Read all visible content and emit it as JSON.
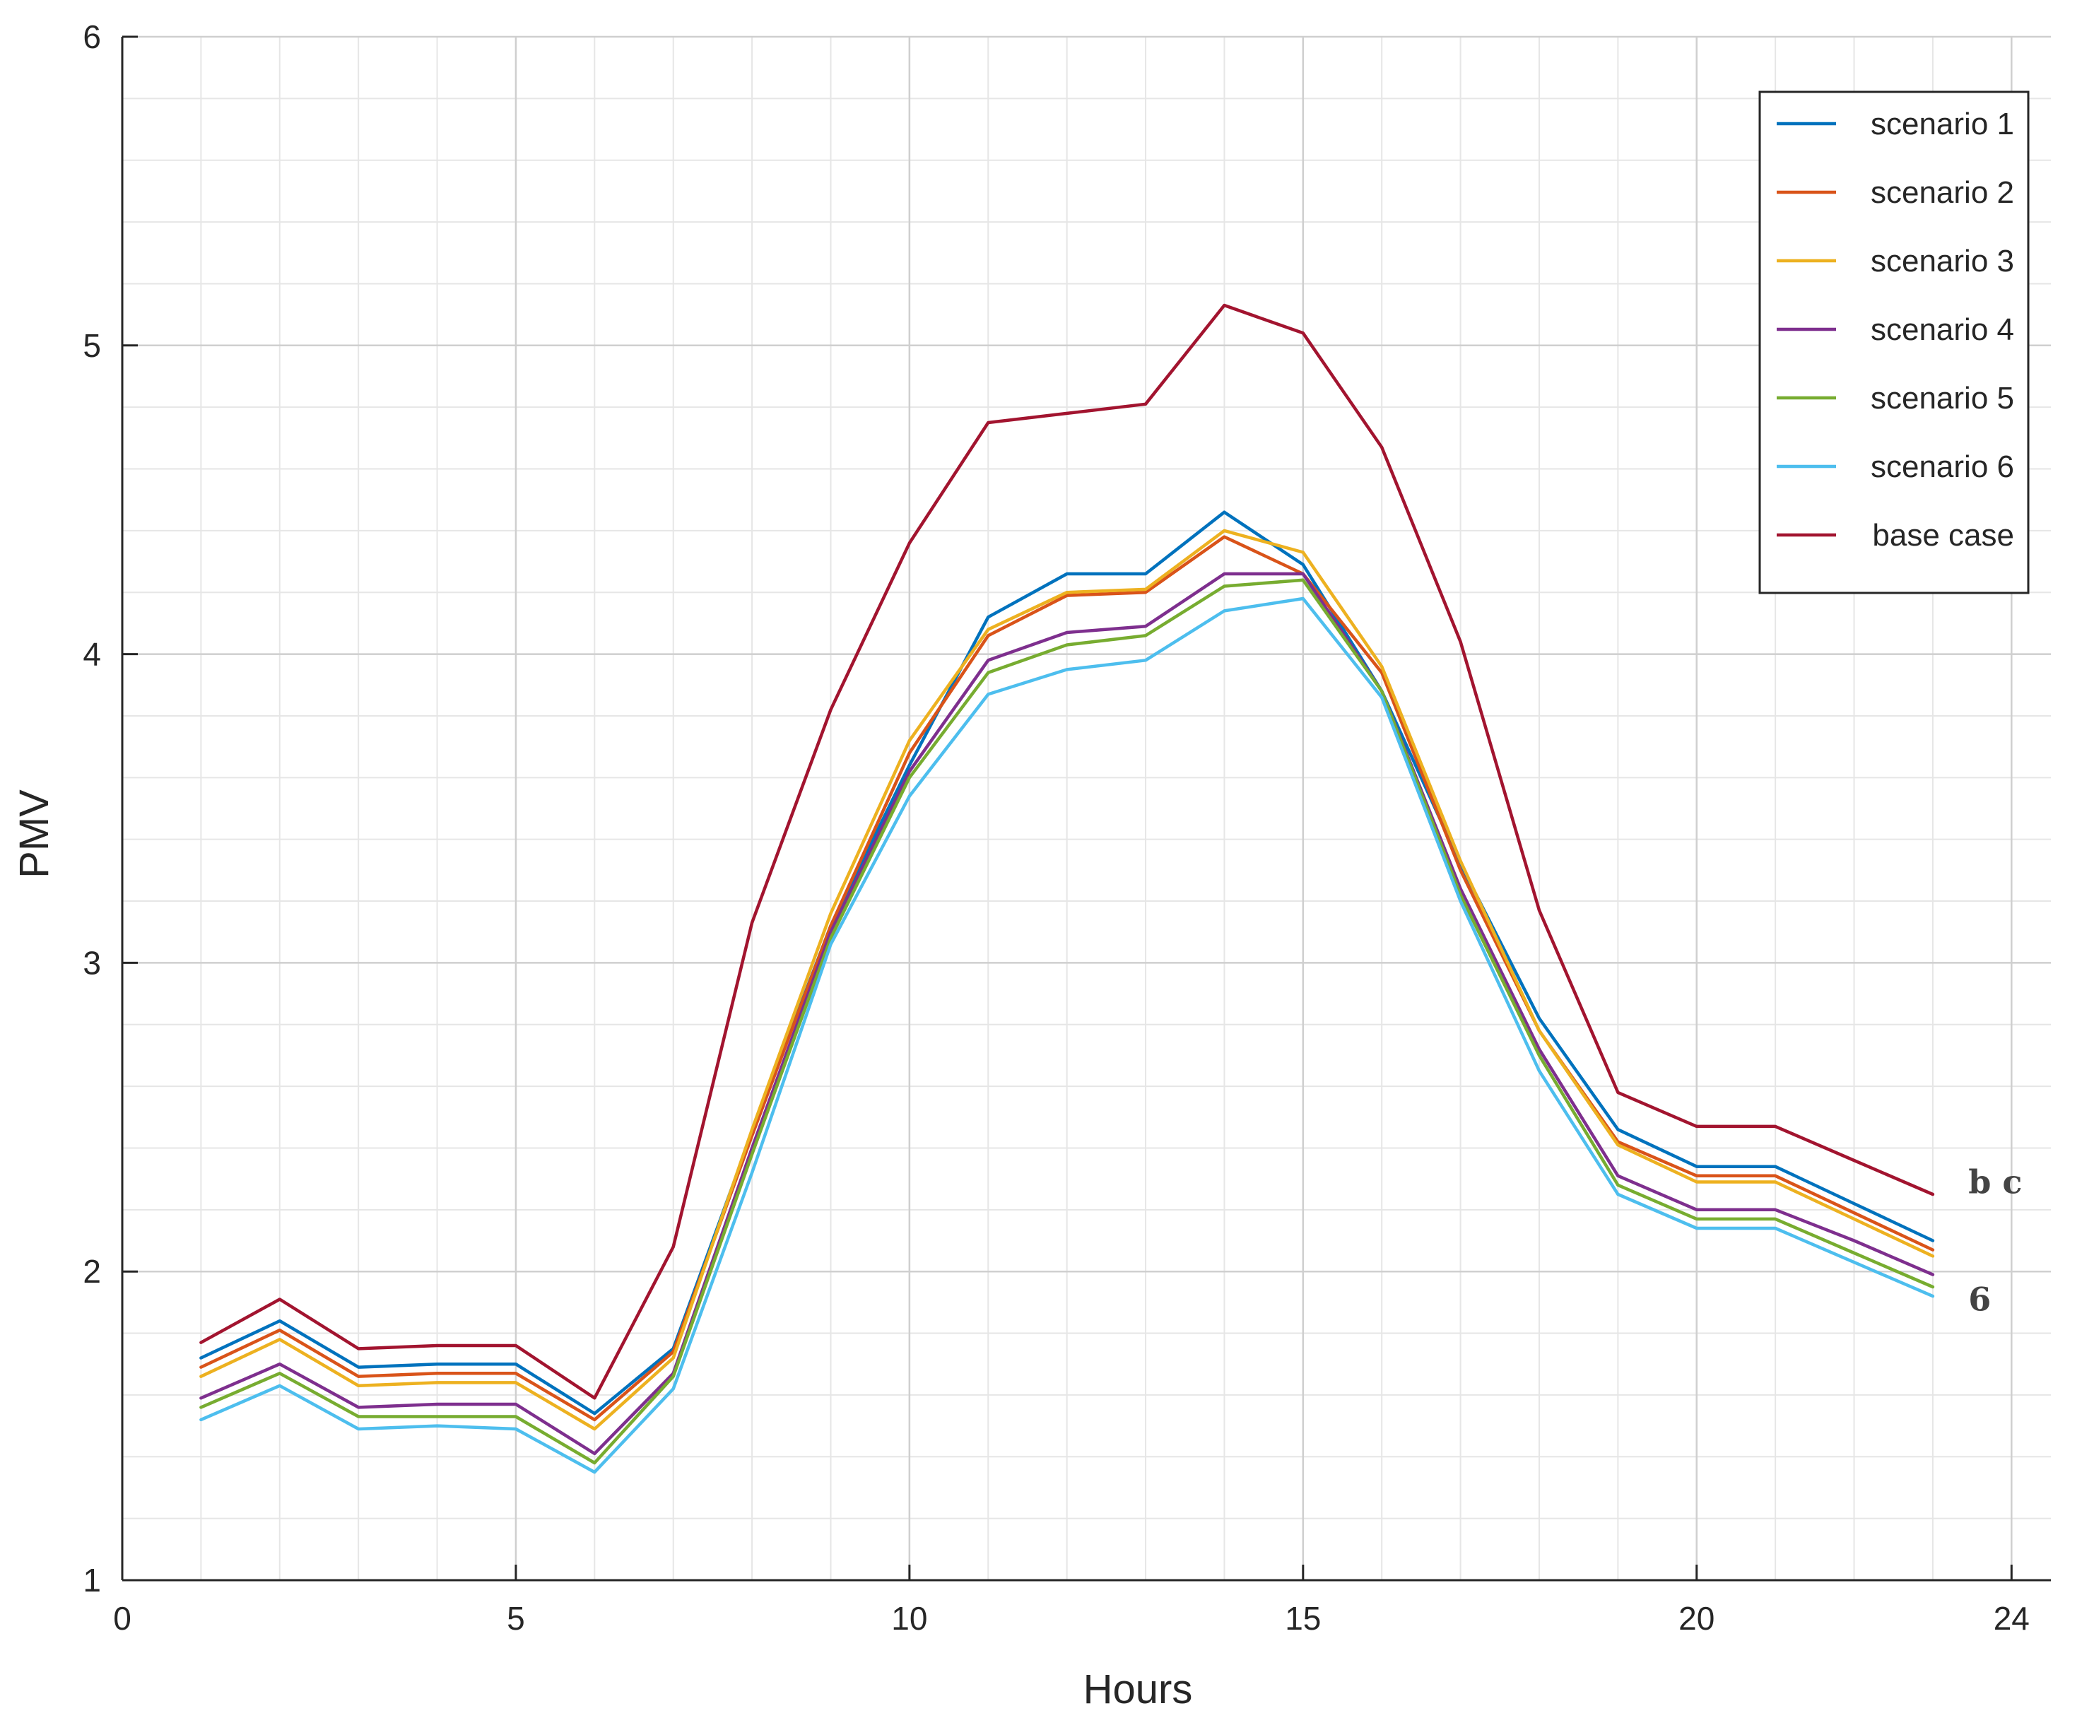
{
  "chart_data": {
    "type": "line",
    "title": "",
    "xlabel": "Hours",
    "ylabel": "PMV",
    "xlim": [
      0,
      24.5
    ],
    "ylim": [
      1,
      6
    ],
    "xticks": [
      0,
      5,
      10,
      15,
      20,
      24
    ],
    "yticks": [
      1,
      2,
      3,
      4,
      5,
      6
    ],
    "grid": true,
    "minor_grid": true,
    "legend_position": "top-right",
    "x": [
      1,
      2,
      3,
      4,
      5,
      6,
      7,
      8,
      9,
      10,
      11,
      12,
      13,
      14,
      15,
      16,
      17,
      18,
      19,
      20,
      21,
      22,
      23
    ],
    "series": [
      {
        "name": "scenario 1",
        "color": "#0072BD",
        "values": [
          1.72,
          1.84,
          1.69,
          1.7,
          1.7,
          1.54,
          1.75,
          2.45,
          3.12,
          3.64,
          4.12,
          4.26,
          4.26,
          4.46,
          4.29,
          3.88,
          3.32,
          2.82,
          2.46,
          2.34,
          2.34,
          2.22,
          2.1
        ]
      },
      {
        "name": "scenario 2",
        "color": "#D95319",
        "values": [
          1.69,
          1.81,
          1.66,
          1.67,
          1.67,
          1.52,
          1.74,
          2.44,
          3.12,
          3.68,
          4.06,
          4.19,
          4.2,
          4.38,
          4.26,
          3.94,
          3.3,
          2.78,
          2.42,
          2.31,
          2.31,
          2.19,
          2.07
        ]
      },
      {
        "name": "scenario 3",
        "color": "#EDB120",
        "values": [
          1.66,
          1.78,
          1.63,
          1.64,
          1.64,
          1.49,
          1.72,
          2.46,
          3.16,
          3.72,
          4.08,
          4.2,
          4.21,
          4.4,
          4.33,
          3.96,
          3.33,
          2.78,
          2.41,
          2.29,
          2.29,
          2.17,
          2.05
        ]
      },
      {
        "name": "scenario 4",
        "color": "#7E2F8E",
        "values": [
          1.59,
          1.7,
          1.56,
          1.57,
          1.57,
          1.41,
          1.67,
          2.4,
          3.1,
          3.62,
          3.98,
          4.07,
          4.09,
          4.26,
          4.26,
          3.88,
          3.24,
          2.72,
          2.31,
          2.2,
          2.2,
          2.1,
          1.99
        ]
      },
      {
        "name": "scenario 5",
        "color": "#77AC30",
        "values": [
          1.56,
          1.67,
          1.53,
          1.53,
          1.53,
          1.38,
          1.66,
          2.38,
          3.08,
          3.6,
          3.94,
          4.03,
          4.06,
          4.22,
          4.24,
          3.88,
          3.22,
          2.7,
          2.28,
          2.17,
          2.17,
          2.06,
          1.95
        ]
      },
      {
        "name": "scenario 6",
        "color": "#4DBEEE",
        "values": [
          1.52,
          1.63,
          1.49,
          1.5,
          1.49,
          1.35,
          1.62,
          2.32,
          3.06,
          3.54,
          3.87,
          3.95,
          3.98,
          4.14,
          4.18,
          3.86,
          3.2,
          2.65,
          2.25,
          2.14,
          2.14,
          2.03,
          1.92
        ]
      },
      {
        "name": "base case",
        "color": "#A2142F",
        "values": [
          1.77,
          1.91,
          1.75,
          1.76,
          1.76,
          1.59,
          2.08,
          3.13,
          3.82,
          4.36,
          4.75,
          4.78,
          4.81,
          5.13,
          5.04,
          4.67,
          4.04,
          3.17,
          2.58,
          2.47,
          2.47,
          2.36,
          2.25
        ]
      }
    ],
    "annotations": [
      {
        "text": "b c",
        "x": 23.2,
        "y": 2.29
      },
      {
        "text": "6",
        "x": 23.2,
        "y": 1.91
      }
    ]
  }
}
